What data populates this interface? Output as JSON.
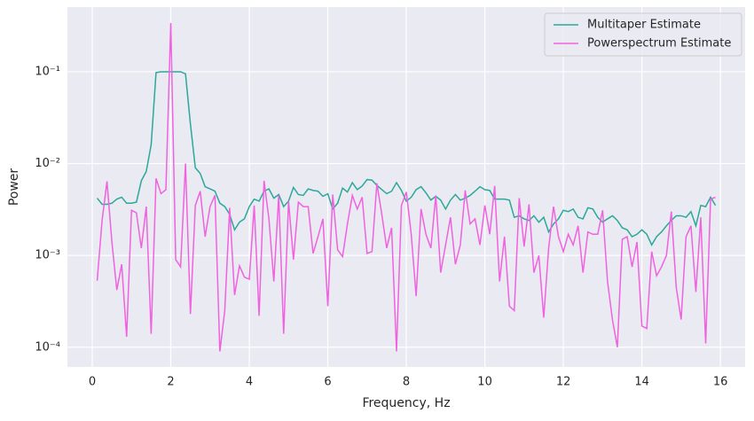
{
  "chart_data": {
    "type": "line",
    "xlabel": "Frequency, Hz",
    "ylabel": "Power",
    "x": [
      0.125,
      0.25,
      0.375,
      0.5,
      0.625,
      0.75,
      0.875,
      1.0,
      1.125,
      1.25,
      1.375,
      1.5,
      1.625,
      1.75,
      1.875,
      2.0,
      2.125,
      2.25,
      2.375,
      2.5,
      2.625,
      2.75,
      2.875,
      3.0,
      3.125,
      3.25,
      3.375,
      3.5,
      3.625,
      3.75,
      3.875,
      4.0,
      4.125,
      4.25,
      4.375,
      4.5,
      4.625,
      4.75,
      4.875,
      5.0,
      5.125,
      5.25,
      5.375,
      5.5,
      5.625,
      5.75,
      5.875,
      6.0,
      6.125,
      6.25,
      6.375,
      6.5,
      6.625,
      6.75,
      6.875,
      7.0,
      7.125,
      7.25,
      7.375,
      7.5,
      7.625,
      7.75,
      7.875,
      8.0,
      8.125,
      8.25,
      8.375,
      8.5,
      8.625,
      8.75,
      8.875,
      9.0,
      9.125,
      9.25,
      9.375,
      9.5,
      9.625,
      9.75,
      9.875,
      10.0,
      10.125,
      10.25,
      10.375,
      10.5,
      10.625,
      10.75,
      10.875,
      11.0,
      11.125,
      11.25,
      11.375,
      11.5,
      11.625,
      11.75,
      11.875,
      12.0,
      12.125,
      12.25,
      12.375,
      12.5,
      12.625,
      12.75,
      12.875,
      13.0,
      13.125,
      13.25,
      13.375,
      13.5,
      13.625,
      13.75,
      13.875,
      14.0,
      14.125,
      14.25,
      14.375,
      14.5,
      14.625,
      14.75,
      14.875,
      15.0,
      15.125,
      15.25,
      15.375,
      15.5,
      15.625,
      15.75,
      15.875
    ],
    "series": [
      {
        "name": "Multitaper Estimate",
        "color": "#2ca89a",
        "values": [
          0.0042,
          0.0036,
          0.0036,
          0.0037,
          0.0041,
          0.0043,
          0.0037,
          0.0037,
          0.0038,
          0.0065,
          0.0082,
          0.016,
          0.098,
          0.1,
          0.1,
          0.1,
          0.1,
          0.1,
          0.095,
          0.027,
          0.009,
          0.0078,
          0.0056,
          0.0053,
          0.005,
          0.0037,
          0.0034,
          0.0028,
          0.0019,
          0.0023,
          0.0025,
          0.0034,
          0.0041,
          0.0039,
          0.005,
          0.0053,
          0.0042,
          0.0046,
          0.0034,
          0.0039,
          0.0055,
          0.0046,
          0.0045,
          0.0053,
          0.0051,
          0.005,
          0.0044,
          0.0047,
          0.0032,
          0.0037,
          0.0054,
          0.0049,
          0.0062,
          0.0052,
          0.0057,
          0.0067,
          0.0066,
          0.0058,
          0.0052,
          0.0047,
          0.005,
          0.0062,
          0.0051,
          0.0039,
          0.0043,
          0.0052,
          0.0056,
          0.0048,
          0.004,
          0.0044,
          0.004,
          0.0032,
          0.004,
          0.0046,
          0.004,
          0.0042,
          0.0045,
          0.005,
          0.0056,
          0.0052,
          0.0051,
          0.0041,
          0.0041,
          0.0041,
          0.004,
          0.0026,
          0.0027,
          0.0025,
          0.0024,
          0.0027,
          0.0023,
          0.0026,
          0.0018,
          0.0022,
          0.0025,
          0.0031,
          0.003,
          0.0032,
          0.0026,
          0.0025,
          0.0033,
          0.0032,
          0.0026,
          0.0023,
          0.0025,
          0.0027,
          0.0024,
          0.002,
          0.0019,
          0.0016,
          0.0017,
          0.0019,
          0.0017,
          0.0013,
          0.0016,
          0.0018,
          0.0021,
          0.0024,
          0.0027,
          0.0027,
          0.0026,
          0.003,
          0.0021,
          0.0035,
          0.0034,
          0.0043,
          0.0035
        ]
      },
      {
        "name": "Powerspectrum Estimate",
        "color": "#f062e0",
        "values": [
          0.00053,
          0.0024,
          0.0064,
          0.0014,
          0.00042,
          0.0008,
          0.00013,
          0.0031,
          0.0029,
          0.0012,
          0.0034,
          0.00014,
          0.0069,
          0.0047,
          0.0052,
          0.34,
          0.0009,
          0.00075,
          0.01,
          0.00023,
          0.0035,
          0.005,
          0.0016,
          0.0034,
          0.0045,
          9e-05,
          0.00025,
          0.0033,
          0.00037,
          0.00077,
          0.00058,
          0.00055,
          0.0035,
          0.00022,
          0.0065,
          0.0025,
          0.00052,
          0.0045,
          0.00014,
          0.0039,
          0.0009,
          0.0038,
          0.0034,
          0.0034,
          0.00105,
          0.0016,
          0.0025,
          0.00028,
          0.0046,
          0.00115,
          0.00097,
          0.0022,
          0.0045,
          0.0032,
          0.0043,
          0.00105,
          0.0011,
          0.0061,
          0.0028,
          0.0012,
          0.002,
          9e-05,
          0.0035,
          0.0049,
          0.0017,
          0.00036,
          0.0032,
          0.0017,
          0.0012,
          0.0045,
          0.00065,
          0.0013,
          0.0026,
          0.0008,
          0.0013,
          0.0051,
          0.0022,
          0.0025,
          0.0013,
          0.0035,
          0.0017,
          0.0057,
          0.00052,
          0.0016,
          0.00028,
          0.00025,
          0.0042,
          0.00125,
          0.0036,
          0.00065,
          0.001,
          0.00021,
          0.0012,
          0.0034,
          0.0016,
          0.0011,
          0.0017,
          0.0013,
          0.0021,
          0.00065,
          0.0018,
          0.0017,
          0.0017,
          0.0031,
          0.00052,
          0.0002,
          0.0001,
          0.0015,
          0.0016,
          0.00075,
          0.0014,
          0.00017,
          0.00016,
          0.0011,
          0.0006,
          0.00075,
          0.001,
          0.003,
          0.00045,
          0.0002,
          0.0016,
          0.0021,
          0.0004,
          0.0026,
          0.00011,
          0.0041,
          0.0043
        ]
      }
    ],
    "xlim": [
      -0.633,
      16.63
    ],
    "ylim": [
      6.1e-05,
      0.506
    ],
    "log_y": true,
    "grid": true,
    "xticks": [
      0,
      2,
      4,
      6,
      8,
      10,
      12,
      14,
      16
    ],
    "yticks": [
      {
        "value": 0.0001,
        "label": "10⁻⁴"
      },
      {
        "value": 0.001,
        "label": "10⁻³"
      },
      {
        "value": 0.01,
        "label": "10⁻²"
      },
      {
        "value": 0.1,
        "label": "10⁻¹"
      }
    ],
    "legend": "upper right"
  }
}
